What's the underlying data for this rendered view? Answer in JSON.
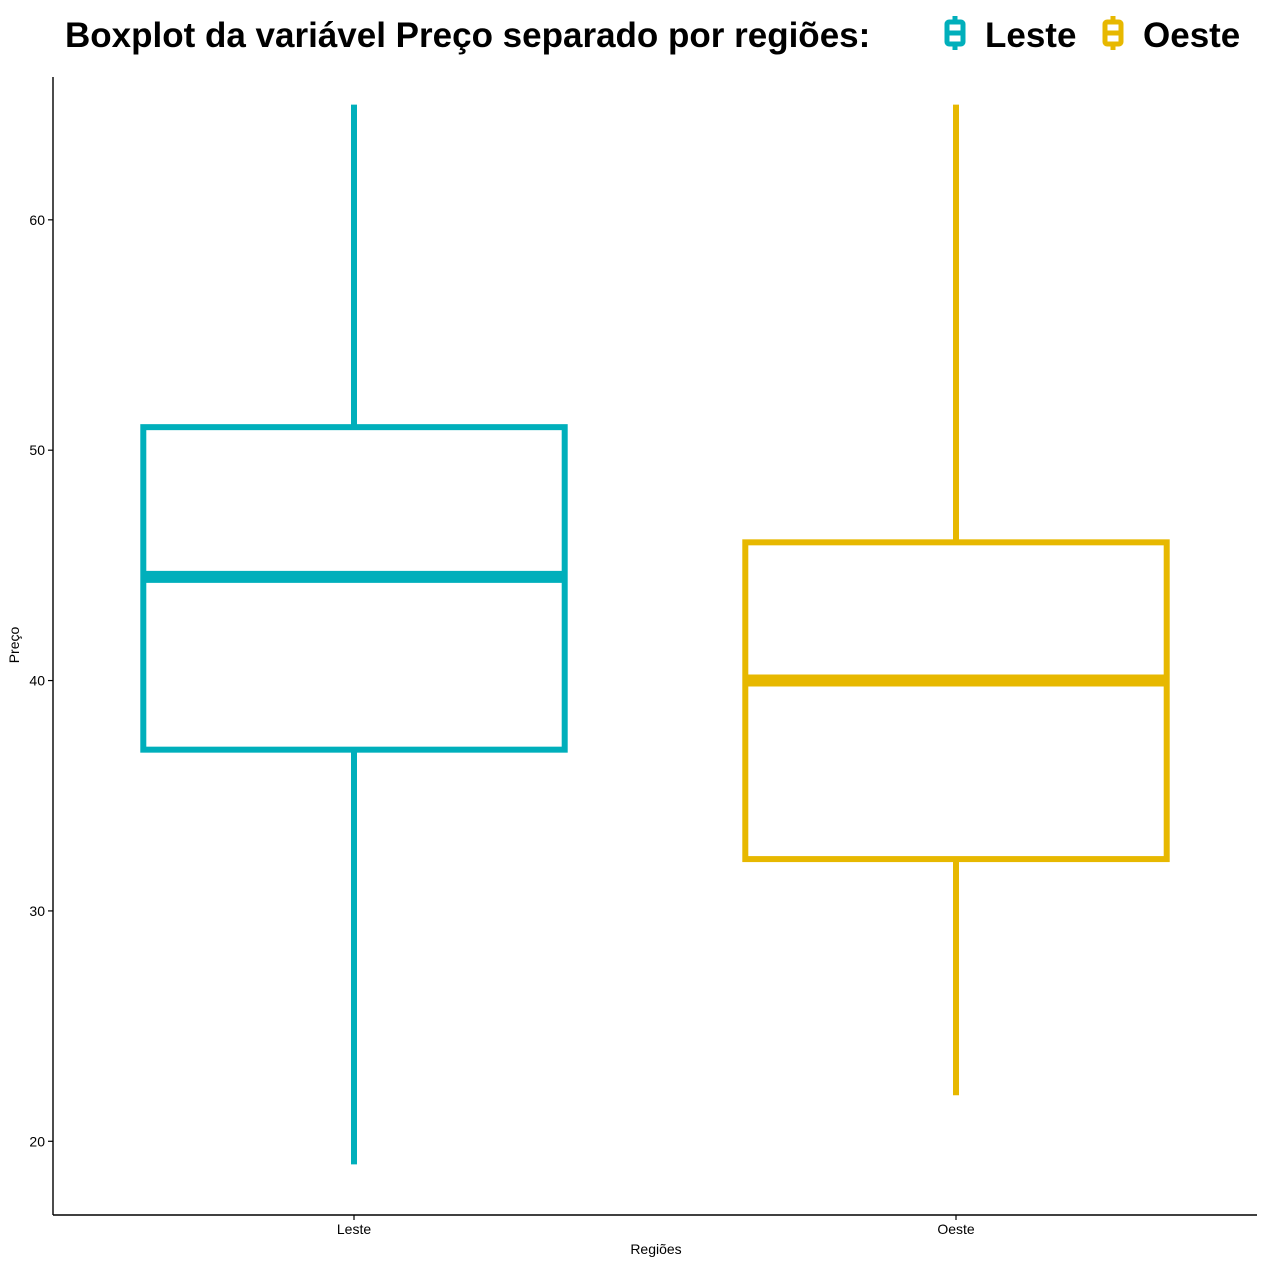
{
  "chart_data": {
    "type": "boxplot",
    "title": "Boxplot da variável Preço separado por regiões:",
    "xlabel": "Regiões",
    "ylabel": "Preço",
    "ylim": [
      16.8,
      66.2
    ],
    "yticks": [
      20,
      30,
      40,
      50,
      60
    ],
    "categories": [
      "Leste",
      "Oeste"
    ],
    "legend": {
      "position": "top",
      "entries": [
        "Leste",
        "Oeste"
      ]
    },
    "grid": false,
    "series": [
      {
        "name": "Leste",
        "color": "#00AFBB",
        "min": 19,
        "q1": 37,
        "median": 44.5,
        "q3": 51,
        "max": 65
      },
      {
        "name": "Oeste",
        "color": "#E7B800",
        "min": 22,
        "q1": 32.25,
        "median": 40,
        "q3": 46,
        "max": 65
      }
    ]
  }
}
